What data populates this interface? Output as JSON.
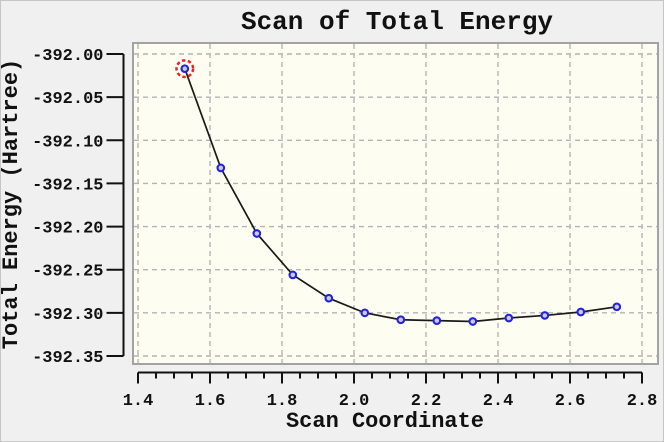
{
  "window": {
    "background": "#f0f0f0",
    "border": "#c6c6c6"
  },
  "chart_data": {
    "type": "line",
    "title": "Scan of Total Energy",
    "xlabel": "Scan Coordinate",
    "ylabel": "Total Energy (Hartree)",
    "x": [
      1.53,
      1.63,
      1.73,
      1.83,
      1.93,
      2.03,
      2.13,
      2.23,
      2.33,
      2.43,
      2.53,
      2.63,
      2.73
    ],
    "y": [
      -392.017,
      -392.132,
      -392.208,
      -392.256,
      -392.283,
      -392.3,
      -392.308,
      -392.309,
      -392.31,
      -392.306,
      -392.303,
      -392.299,
      -392.293
    ],
    "xlim": [
      1.4,
      2.8
    ],
    "ylim": [
      -392.35,
      -392.0
    ],
    "x_ticks": [
      1.4,
      1.6,
      1.8,
      2.0,
      2.2,
      2.4,
      2.6,
      2.8
    ],
    "x_tick_labels": [
      "1.4",
      "1.6",
      "1.8",
      "2.0",
      "2.2",
      "2.4",
      "2.6",
      "2.8"
    ],
    "x_minor_step": 0.05,
    "y_ticks": [
      -392.0,
      -392.05,
      -392.1,
      -392.15,
      -392.2,
      -392.25,
      -392.3,
      -392.35
    ],
    "y_tick_labels": [
      "-392.00",
      "-392.05",
      "-392.10",
      "-392.15",
      "-392.20",
      "-392.25",
      "-392.30",
      "-392.35"
    ],
    "grid": "dashed lines at every major tick, both axes",
    "legend": "none",
    "marker": "open-circle",
    "selected_point_index": 0,
    "colors": {
      "line": "#1a1a1a",
      "marker_stroke": "#2323dd",
      "marker_fill": "#cccccc",
      "selected_ring": "#ee2222",
      "grid": "#b4b4b4",
      "plot_bg": "#fdfdf2",
      "frame_border": "#a3a3a3",
      "text": "#111111"
    }
  }
}
